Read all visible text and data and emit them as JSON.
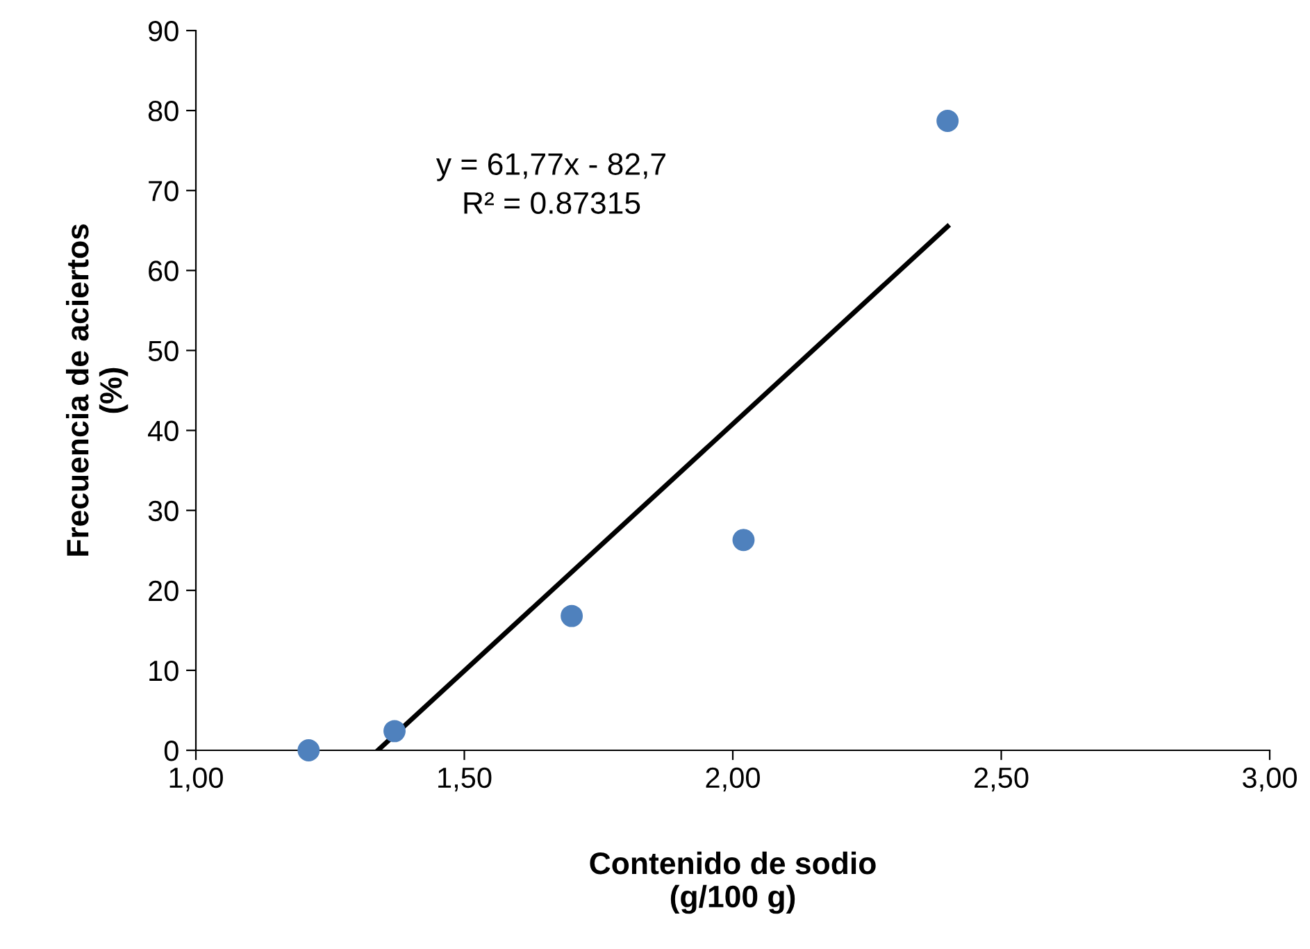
{
  "chart_data": {
    "type": "scatter",
    "xlabel": "Contenido de sodio\n(g/100 g)",
    "ylabel": "Frecuencia de aciertos\n(%)",
    "series": [
      {
        "color": "#4f81bd",
        "marker": "circle",
        "x": [
          1.21,
          1.37,
          1.7,
          2.02,
          2.4
        ],
        "values": [
          0,
          2.4,
          16.8,
          26.3,
          78.7
        ]
      },
      {
        "type": "line",
        "color": "#000000",
        "line_style": "solid",
        "marker": "none",
        "x": [
          1.339,
          2.4
        ],
        "values": [
          0,
          65.5
        ]
      }
    ],
    "xlim": [
      1.0,
      3.0
    ],
    "xticks": [
      {
        "value": 1.0,
        "label": "1,00"
      },
      {
        "value": 1.5,
        "label": "1,50"
      },
      {
        "value": 2.0,
        "label": "2,00"
      },
      {
        "value": 2.5,
        "label": "2,50"
      },
      {
        "value": 3.0,
        "label": "3,00"
      }
    ],
    "ylim": [
      0,
      90
    ],
    "yticks": [
      0,
      10,
      20,
      30,
      40,
      50,
      60,
      70,
      80,
      90
    ],
    "annotations": [
      "y = 61,77x - 82,7",
      "R² = 0.87315"
    ],
    "grid": false,
    "legend": false
  }
}
